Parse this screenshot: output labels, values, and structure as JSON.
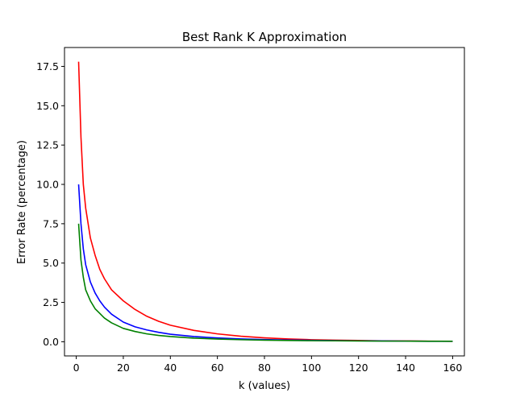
{
  "chart_data": {
    "type": "line",
    "title": "Best Rank K Approximation",
    "xlabel": "k (values)",
    "ylabel": "Error Rate (percentage)",
    "xlim": [
      -5,
      165
    ],
    "ylim": [
      -0.9,
      18.7
    ],
    "xticks": [
      0,
      20,
      40,
      60,
      80,
      100,
      120,
      140,
      160
    ],
    "xtick_labels": [
      "0",
      "20",
      "40",
      "60",
      "80",
      "100",
      "120",
      "140",
      "160"
    ],
    "yticks": [
      0.0,
      2.5,
      5.0,
      7.5,
      10.0,
      12.5,
      15.0,
      17.5
    ],
    "ytick_labels": [
      "0.0",
      "2.5",
      "5.0",
      "7.5",
      "10.0",
      "12.5",
      "15.0",
      "17.5"
    ],
    "grid": false,
    "series": [
      {
        "color": "#ff0000",
        "x": [
          1,
          2,
          3,
          4,
          6,
          8,
          10,
          12,
          15,
          20,
          25,
          30,
          35,
          40,
          50,
          60,
          70,
          80,
          90,
          100,
          110,
          120,
          130,
          140,
          150,
          160
        ],
        "values": [
          17.8,
          13.0,
          10.0,
          8.5,
          6.6,
          5.5,
          4.6,
          4.0,
          3.3,
          2.6,
          2.05,
          1.62,
          1.3,
          1.05,
          0.72,
          0.5,
          0.35,
          0.25,
          0.18,
          0.13,
          0.1,
          0.08,
          0.06,
          0.05,
          0.04,
          0.03
        ]
      },
      {
        "color": "#0000ff",
        "x": [
          1,
          2,
          3,
          4,
          6,
          8,
          10,
          12,
          15,
          20,
          25,
          30,
          35,
          40,
          50,
          60,
          70,
          80,
          90,
          100,
          110,
          120,
          130,
          140,
          150,
          160
        ],
        "values": [
          10.0,
          7.5,
          5.9,
          4.9,
          3.8,
          3.1,
          2.6,
          2.2,
          1.75,
          1.25,
          0.95,
          0.75,
          0.6,
          0.48,
          0.33,
          0.24,
          0.18,
          0.14,
          0.11,
          0.09,
          0.07,
          0.06,
          0.05,
          0.04,
          0.03,
          0.03
        ]
      },
      {
        "color": "#008000",
        "x": [
          1,
          2,
          3,
          4,
          6,
          8,
          10,
          12,
          15,
          20,
          25,
          30,
          35,
          40,
          50,
          60,
          70,
          80,
          90,
          100,
          110,
          120,
          130,
          140,
          150,
          160
        ],
        "values": [
          7.5,
          5.2,
          4.1,
          3.3,
          2.6,
          2.1,
          1.8,
          1.5,
          1.2,
          0.85,
          0.65,
          0.5,
          0.4,
          0.33,
          0.23,
          0.17,
          0.13,
          0.1,
          0.08,
          0.07,
          0.06,
          0.05,
          0.04,
          0.04,
          0.03,
          0.03
        ]
      }
    ]
  }
}
